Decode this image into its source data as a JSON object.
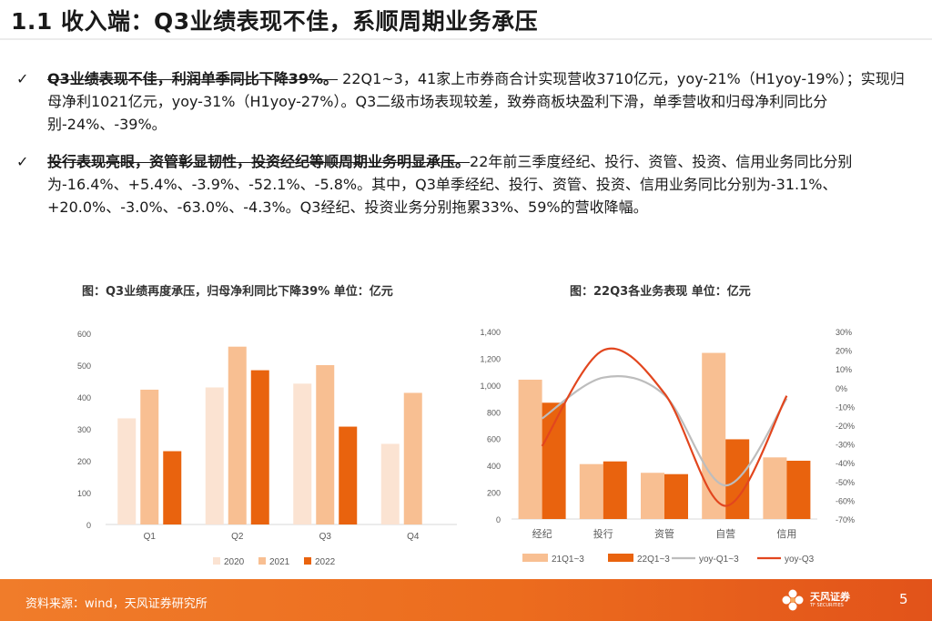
{
  "page": {
    "title": "1.1 收入端：Q3业绩表现不佳，系顺周期业务承压",
    "bullets": [
      {
        "check": "✓",
        "lead": "Q3业绩表现不佳，利润单季同比下降39%。",
        "text": " 22Q1~3，41家上市券商合计实现营收3710亿元，yoy-21%（H1yoy-19%）；实现归母净利1021亿元，yoy-31%（H1yoy-27%）。Q3二级市场表现较差，致券商板块盈利下滑，单季营收和归母净利同比分别-24%、-39%。"
      },
      {
        "check": "✓",
        "lead": "投行表现亮眼，资管彰显韧性，投资经纪等顺周期业务明显承压。",
        "text": "22年前三季度经纪、投行、资管、投资、信用业务同比分别为-16.4%、+5.4%、-3.9%、-52.1%、-5.8%。其中，Q3单季经纪、投行、资管、投资、信用业务同比分别为-31.1%、+20.0%、-3.0%、-63.0%、-4.3%。Q3经纪、投资业务分别拖累33%、59%的营收降幅。"
      }
    ],
    "footer": {
      "source": "资料来源：wind，天风证券研究所",
      "logo_name": "天风证券",
      "logo_sub": "TF SECURITIES",
      "page_number": "5"
    }
  },
  "colors": {
    "y2020": "#fbe3d2",
    "y2021": "#f8bf92",
    "y2022": "#e9630e",
    "bar_21": "#f8bf92",
    "bar_22": "#e9630e",
    "line_q13": "#bdbdbd",
    "line_q3": "#e2461e"
  },
  "chart_data": [
    {
      "type": "bar",
      "title": "图：Q3业绩再度承压，归母净利同比下降39%    单位：亿元",
      "categories": [
        "Q1",
        "Q2",
        "Q3",
        "Q4"
      ],
      "series": [
        {
          "name": "2020",
          "values": [
            333,
            430,
            442,
            253
          ]
        },
        {
          "name": "2021",
          "values": [
            423,
            558,
            500,
            413
          ]
        },
        {
          "name": "2022",
          "values": [
            230,
            484,
            307,
            null
          ]
        }
      ],
      "ylim": [
        0,
        600
      ],
      "yticks": [
        "0",
        "100",
        "200",
        "300",
        "400",
        "500",
        "600"
      ],
      "ytick_values": [
        0,
        100,
        200,
        300,
        400,
        500,
        600
      ],
      "legend": "bottom"
    },
    {
      "type": "bar+line",
      "title": "图：22Q3各业务表现  单位：亿元",
      "categories": [
        "经纪",
        "投行",
        "资管",
        "自营",
        "信用"
      ],
      "series": [
        {
          "name": "21Q1~3",
          "type": "bar",
          "axis": "left",
          "values": [
            1040,
            410,
            345,
            1240,
            460
          ]
        },
        {
          "name": "22Q1~3",
          "type": "bar",
          "axis": "left",
          "values": [
            868,
            430,
            335,
            595,
            435
          ]
        },
        {
          "name": "yoy-Q1~3",
          "type": "line",
          "axis": "right",
          "values": [
            -16.4,
            5.4,
            -3.9,
            -52.1,
            -5.8
          ]
        },
        {
          "name": "yoy-Q3",
          "type": "line",
          "axis": "right",
          "values": [
            -31.1,
            20.0,
            -3.0,
            -63.0,
            -4.3
          ]
        }
      ],
      "ylim_left": [
        0,
        1400
      ],
      "yticks_left": [
        "0",
        "200",
        "400",
        "600",
        "800",
        "1,000",
        "1,200",
        "1,400"
      ],
      "ytick_values_left": [
        0,
        200,
        400,
        600,
        800,
        1000,
        1200,
        1400
      ],
      "ylim_right": [
        -70,
        30
      ],
      "yticks_right": [
        "-70%",
        "-60%",
        "-50%",
        "-40%",
        "-30%",
        "-20%",
        "-10%",
        "0%",
        "10%",
        "20%",
        "30%"
      ],
      "ytick_values_right": [
        -70,
        -60,
        -50,
        -40,
        -30,
        -20,
        -10,
        0,
        10,
        20,
        30
      ],
      "legend": "bottom"
    }
  ]
}
